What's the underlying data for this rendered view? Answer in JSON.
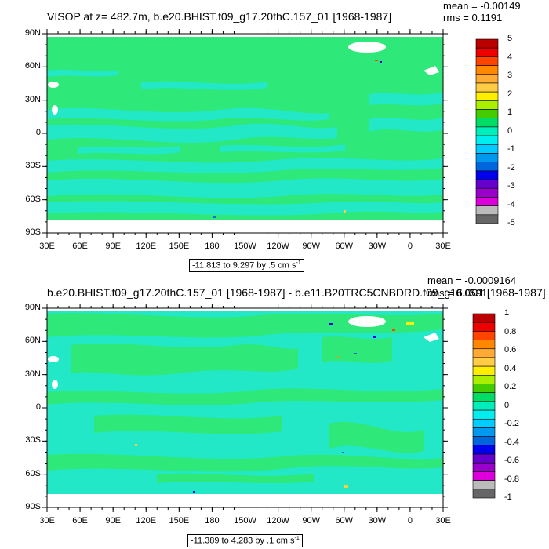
{
  "panels": [
    {
      "title": "VISOP at z= 482.7m, b.e20.BHIST.f09_g17.20thC.157_01 [1968-1987]",
      "mean": "mean = -0.00149",
      "rms": "rms = 0.1191",
      "range_text": "-11.813 to 9.297 by .5 cm s",
      "range_unit_exp": "-1",
      "colorbar_labels": [
        "5",
        "4",
        "3",
        "2",
        "1",
        "0",
        "-1",
        "-2",
        "-3",
        "-4",
        "-5"
      ]
    },
    {
      "title": "b.e20.BHIST.f09_g17.20thC.157_01 [1968-1987] - b.e11.B20TRC5CNBDRD.f09_g16.001 [1968-1987]",
      "mean": "mean = -0.0009164",
      "rms": "rms = 0.0591",
      "range_text": "-11.389 to 4.283 by .1 cm s",
      "range_unit_exp": "-1",
      "colorbar_labels": [
        "1",
        "0.8",
        "0.6",
        "0.4",
        "0.2",
        "0",
        "-0.2",
        "-0.4",
        "-0.6",
        "-0.8",
        "-1"
      ]
    }
  ],
  "lat_labels": [
    "90N",
    "60N",
    "30N",
    "0",
    "30S",
    "60S",
    "90S"
  ],
  "lon_labels": [
    "30E",
    "60E",
    "90E",
    "120E",
    "150E",
    "180",
    "150W",
    "120W",
    "90W",
    "60W",
    "30W",
    "0",
    "30E"
  ],
  "colorbar_colors": [
    "#bb0000",
    "#ee0000",
    "#ff4400",
    "#ff8800",
    "#ffaa33",
    "#ffcc44",
    "#ffee00",
    "#aaee00",
    "#44cc00",
    "#00dd66",
    "#00eebb",
    "#00eeee",
    "#00ccff",
    "#0099ee",
    "#0066dd",
    "#0000ee",
    "#6600cc",
    "#9900cc",
    "#dd00dd",
    "#bbbbbb",
    "#666666"
  ],
  "colors": {
    "ocean_main": "#2ee87a",
    "ocean_band": "#22e8c8",
    "land": "#ffffff"
  }
}
